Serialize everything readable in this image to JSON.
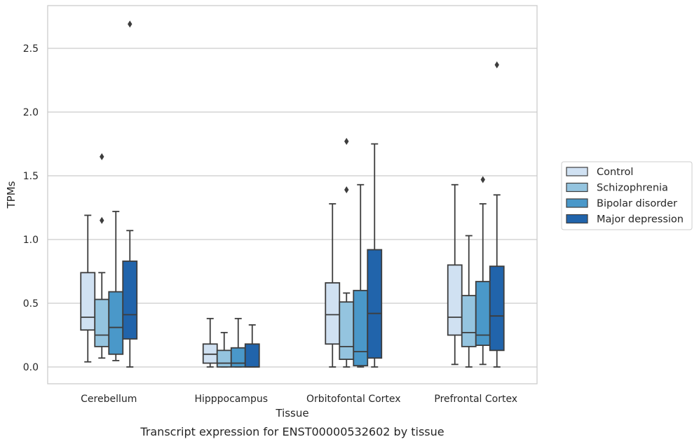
{
  "caption": "Transcript expression for ENST00000532602 by tissue",
  "chart_data": {
    "type": "box",
    "xlabel": "Tissue",
    "ylabel": "TPMs",
    "ylim": [
      -0.13,
      2.84
    ],
    "yticks": [
      "0.0",
      "0.5",
      "1.0",
      "1.5",
      "2.0",
      "2.5"
    ],
    "grid": "horizontal",
    "legend_position": "right",
    "categories": [
      "Cerebellum",
      "Hipppocampus",
      "Orbitofontal Cortex",
      "Prefrontal Cortex"
    ],
    "series": [
      {
        "name": "Control",
        "color": "#d0e1f2",
        "boxes": [
          {
            "whislo": 0.04,
            "q1": 0.29,
            "med": 0.39,
            "q3": 0.74,
            "whishi": 1.19,
            "fliers": []
          },
          {
            "whislo": 0.0,
            "q1": 0.03,
            "med": 0.1,
            "q3": 0.18,
            "whishi": 0.38,
            "fliers": []
          },
          {
            "whislo": 0.0,
            "q1": 0.18,
            "med": 0.41,
            "q3": 0.66,
            "whishi": 1.28,
            "fliers": []
          },
          {
            "whislo": 0.02,
            "q1": 0.25,
            "med": 0.39,
            "q3": 0.8,
            "whishi": 1.43,
            "fliers": []
          }
        ]
      },
      {
        "name": "Schizophrenia",
        "color": "#94c4df",
        "boxes": [
          {
            "whislo": 0.07,
            "q1": 0.16,
            "med": 0.25,
            "q3": 0.53,
            "whishi": 0.74,
            "fliers": [
              1.15,
              1.65
            ]
          },
          {
            "whislo": 0.0,
            "q1": 0.0,
            "med": 0.03,
            "q3": 0.13,
            "whishi": 0.27,
            "fliers": []
          },
          {
            "whislo": 0.0,
            "q1": 0.06,
            "med": 0.16,
            "q3": 0.51,
            "whishi": 0.58,
            "fliers": [
              1.39,
              1.77
            ]
          },
          {
            "whislo": 0.0,
            "q1": 0.16,
            "med": 0.27,
            "q3": 0.56,
            "whishi": 1.03,
            "fliers": []
          }
        ]
      },
      {
        "name": "Bipolar disorder",
        "color": "#4a98c9",
        "boxes": [
          {
            "whislo": 0.05,
            "q1": 0.1,
            "med": 0.31,
            "q3": 0.59,
            "whishi": 1.22,
            "fliers": []
          },
          {
            "whislo": 0.0,
            "q1": 0.0,
            "med": 0.03,
            "q3": 0.15,
            "whishi": 0.38,
            "fliers": []
          },
          {
            "whislo": 0.0,
            "q1": 0.01,
            "med": 0.12,
            "q3": 0.6,
            "whishi": 1.43,
            "fliers": []
          },
          {
            "whislo": 0.02,
            "q1": 0.17,
            "med": 0.25,
            "q3": 0.67,
            "whishi": 1.28,
            "fliers": [
              1.47
            ]
          }
        ]
      },
      {
        "name": "Major depression",
        "color": "#2164ab",
        "boxes": [
          {
            "whislo": 0.0,
            "q1": 0.22,
            "med": 0.41,
            "q3": 0.83,
            "whishi": 1.07,
            "fliers": [
              2.69
            ]
          },
          {
            "whislo": 0.0,
            "q1": 0.0,
            "med": 0.0,
            "q3": 0.18,
            "whishi": 0.33,
            "fliers": []
          },
          {
            "whislo": 0.0,
            "q1": 0.07,
            "med": 0.42,
            "q3": 0.92,
            "whishi": 1.75,
            "fliers": []
          },
          {
            "whislo": 0.0,
            "q1": 0.13,
            "med": 0.4,
            "q3": 0.79,
            "whishi": 1.35,
            "fliers": [
              2.37
            ]
          }
        ]
      }
    ]
  }
}
